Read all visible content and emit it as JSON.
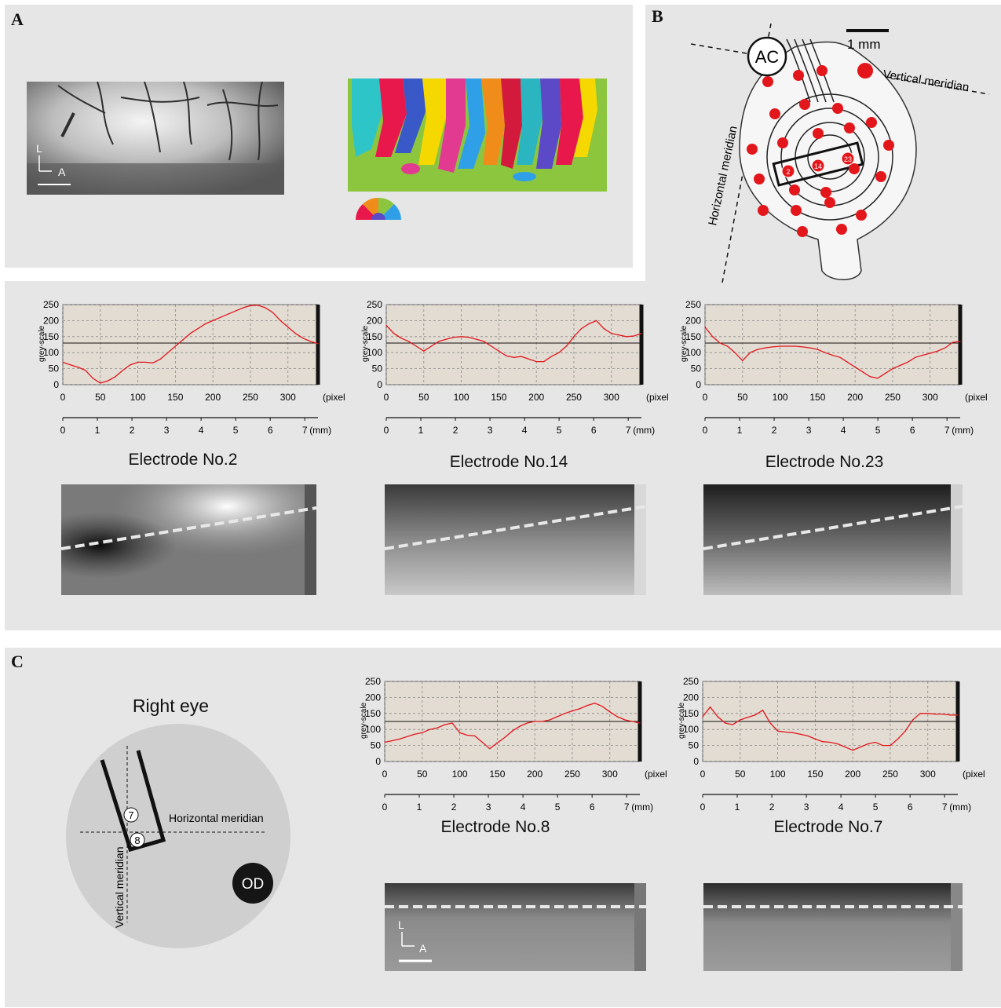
{
  "panels": {
    "a": {
      "label": "A"
    },
    "b": {
      "label": "B"
    },
    "c": {
      "label": "C"
    }
  },
  "panel_a": {
    "orientation": {
      "l": "L",
      "a": "A"
    }
  },
  "panel_b": {
    "scale_bar": "1 mm",
    "ac_label": "AC",
    "vertical_meridian": "Vertical meridian",
    "horizontal_meridian": "Horizontal meridian",
    "electrode_numbers": [
      "2",
      "14",
      "23"
    ]
  },
  "panel_c": {
    "eye_title": "Right eye",
    "horizontal_meridian": "Horizontal meridian",
    "vertical_meridian": "Vertical meridian",
    "od_label": "OD",
    "electrode_marks": [
      "7",
      "8"
    ],
    "orientation": {
      "l": "L",
      "a": "A"
    }
  },
  "axis_text": {
    "ylabel": "grey-scale",
    "pixel_unit": "(pixel)",
    "mm_unit": "(mm)",
    "pixel_ticks": [
      "0",
      "50",
      "100",
      "150",
      "200",
      "250",
      "300"
    ],
    "y_ticks": [
      "0",
      "50",
      "100",
      "150",
      "200",
      "250"
    ],
    "mm_ticks": [
      "0",
      "1",
      "2",
      "3",
      "4",
      "5",
      "6",
      "7"
    ]
  },
  "chart_data": [
    {
      "type": "line",
      "title": "Electrode No.2",
      "xlabel": "(pixel)",
      "ylabel": "grey-scale",
      "xlim": [
        0,
        340
      ],
      "ylim": [
        0,
        250
      ],
      "x": [
        0,
        10,
        20,
        30,
        40,
        50,
        60,
        70,
        80,
        90,
        100,
        110,
        120,
        130,
        140,
        150,
        160,
        170,
        180,
        190,
        200,
        210,
        220,
        230,
        240,
        250,
        260,
        270,
        280,
        290,
        300,
        310,
        320,
        330,
        340
      ],
      "values": [
        70,
        62,
        55,
        45,
        20,
        5,
        12,
        25,
        45,
        62,
        70,
        70,
        68,
        80,
        100,
        120,
        140,
        160,
        175,
        190,
        200,
        210,
        220,
        230,
        240,
        247,
        248,
        240,
        225,
        200,
        180,
        160,
        145,
        135,
        128
      ],
      "reference_line": 130
    },
    {
      "type": "line",
      "title": "Electrode No.14",
      "xlabel": "(pixel)",
      "ylabel": "grey-scale",
      "xlim": [
        0,
        340
      ],
      "ylim": [
        0,
        250
      ],
      "x": [
        0,
        10,
        20,
        30,
        40,
        50,
        60,
        70,
        80,
        90,
        100,
        110,
        120,
        130,
        140,
        150,
        160,
        170,
        180,
        190,
        200,
        210,
        220,
        230,
        240,
        250,
        260,
        270,
        280,
        290,
        300,
        310,
        320,
        330,
        340
      ],
      "values": [
        185,
        160,
        145,
        135,
        120,
        105,
        120,
        135,
        142,
        148,
        150,
        148,
        142,
        135,
        120,
        105,
        90,
        85,
        88,
        80,
        72,
        72,
        88,
        100,
        120,
        150,
        175,
        190,
        200,
        175,
        160,
        155,
        150,
        152,
        160
      ],
      "reference_line": 130
    },
    {
      "type": "line",
      "title": "Electrode No.23",
      "xlabel": "(pixel)",
      "ylabel": "grey-scale",
      "xlim": [
        0,
        340
      ],
      "ylim": [
        0,
        250
      ],
      "x": [
        0,
        10,
        20,
        30,
        40,
        50,
        60,
        70,
        80,
        90,
        100,
        110,
        120,
        130,
        140,
        150,
        160,
        170,
        180,
        190,
        200,
        210,
        220,
        230,
        240,
        250,
        260,
        270,
        280,
        290,
        300,
        310,
        320,
        330,
        340
      ],
      "values": [
        180,
        150,
        130,
        120,
        100,
        75,
        100,
        110,
        115,
        118,
        120,
        120,
        120,
        118,
        115,
        110,
        100,
        92,
        85,
        70,
        55,
        40,
        25,
        20,
        35,
        50,
        60,
        70,
        85,
        92,
        98,
        105,
        115,
        132,
        135
      ],
      "reference_line": 130
    },
    {
      "type": "line",
      "title": "Electrode No.8",
      "xlabel": "(pixel)",
      "ylabel": "grey-scale",
      "xlim": [
        0,
        340
      ],
      "ylim": [
        0,
        250
      ],
      "x": [
        0,
        10,
        20,
        30,
        40,
        50,
        60,
        70,
        80,
        90,
        100,
        110,
        120,
        130,
        140,
        150,
        160,
        170,
        180,
        190,
        200,
        210,
        220,
        230,
        240,
        250,
        260,
        270,
        280,
        290,
        300,
        310,
        320,
        330,
        340
      ],
      "values": [
        60,
        65,
        70,
        78,
        85,
        90,
        100,
        105,
        115,
        120,
        90,
        82,
        80,
        60,
        40,
        58,
        75,
        95,
        110,
        120,
        125,
        125,
        130,
        140,
        150,
        158,
        165,
        175,
        182,
        172,
        155,
        140,
        130,
        125,
        120
      ],
      "reference_line": 125
    },
    {
      "type": "line",
      "title": "Electrode No.7",
      "xlabel": "(pixel)",
      "ylabel": "grey-scale",
      "xlim": [
        0,
        340
      ],
      "ylim": [
        0,
        250
      ],
      "x": [
        0,
        10,
        20,
        30,
        40,
        50,
        60,
        70,
        80,
        90,
        100,
        110,
        120,
        130,
        140,
        150,
        160,
        170,
        180,
        190,
        200,
        210,
        220,
        230,
        240,
        250,
        260,
        270,
        280,
        290,
        300,
        310,
        320,
        330,
        340
      ],
      "values": [
        140,
        170,
        140,
        120,
        115,
        130,
        138,
        145,
        160,
        120,
        95,
        92,
        90,
        85,
        80,
        70,
        62,
        60,
        55,
        45,
        35,
        45,
        55,
        60,
        50,
        50,
        70,
        95,
        130,
        150,
        150,
        148,
        148,
        145,
        145
      ],
      "reference_line": 125
    }
  ]
}
